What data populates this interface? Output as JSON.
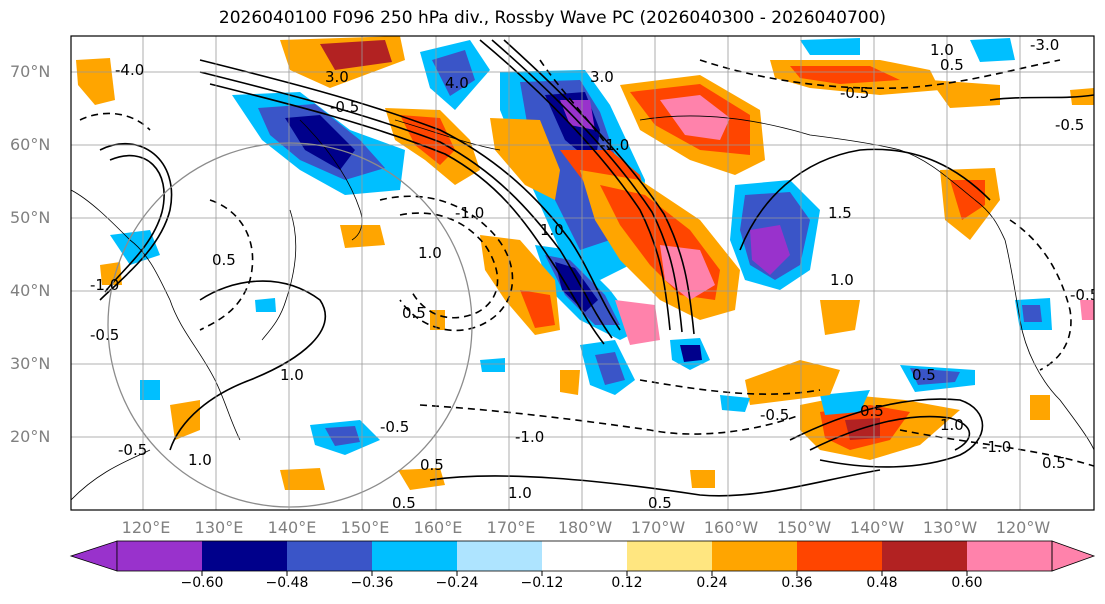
{
  "title": "2026040100 F096 250 hPa div., Rossby Wave PC (2026040300 - 2026040700)",
  "lat_labels": [
    "70°N",
    "60°N",
    "50°N",
    "40°N",
    "30°N",
    "20°N"
  ],
  "lon_labels": [
    "120°E",
    "130°E",
    "140°E",
    "150°E",
    "160°E",
    "170°E",
    "180°W",
    "170°W",
    "160°W",
    "150°W",
    "140°W",
    "130°W",
    "120°W"
  ],
  "colorbar": {
    "tick_labels": [
      "−0.60",
      "−0.48",
      "−0.36",
      "−0.24",
      "−0.12",
      "0.12",
      "0.24",
      "0.36",
      "0.48",
      "0.60"
    ],
    "colors": [
      "#9932cc",
      "#00008b",
      "#3a55c8",
      "#00bfff",
      "#aee4ff",
      "#ffffff",
      "#ffe680",
      "#ffa500",
      "#ff4500",
      "#b22222",
      "#ff82ab"
    ]
  },
  "contour_labels": [
    "-4.0",
    "3.0",
    "-0.5",
    "4.0",
    "1.0",
    "-3.0",
    "0.5",
    "-0.5",
    "1.5",
    "-1.0",
    "1.0",
    "0.5",
    "-1.0",
    "-0.5",
    "0.5",
    "1.0",
    "-0.5",
    "0.5",
    "0.5",
    "1.0",
    "-1.0",
    "1.0",
    "0.5",
    "1.0",
    "-1.0",
    "0.5",
    "-0.5",
    "-0.5",
    "0.5",
    "1.0",
    "-1.0",
    "3.0",
    "-0.5",
    "0.5",
    "-0.5",
    "1.0"
  ]
}
